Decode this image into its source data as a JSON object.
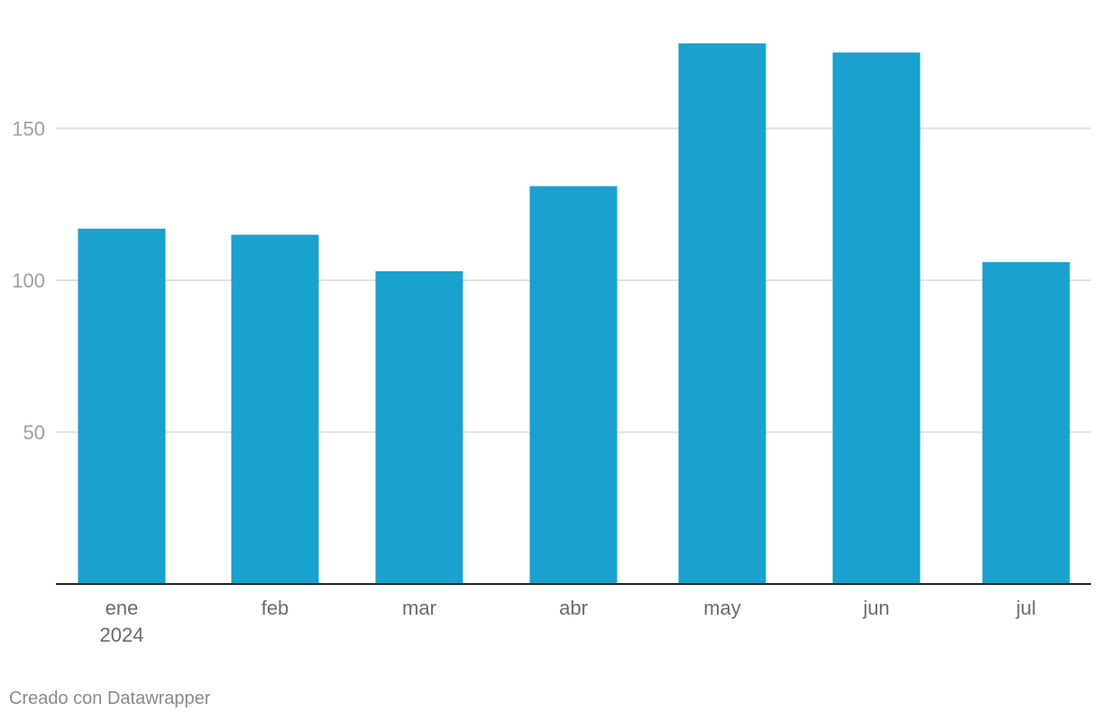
{
  "chart_data": {
    "type": "bar",
    "title": "",
    "xlabel": "",
    "ylabel": "",
    "categories": [
      "ene",
      "feb",
      "mar",
      "abr",
      "may",
      "jun",
      "jul"
    ],
    "category_sublabels": [
      "2024",
      "",
      "",
      "",
      "",
      "",
      ""
    ],
    "values": [
      117,
      115,
      103,
      131,
      178,
      175,
      106
    ],
    "ylim": [
      0,
      190
    ],
    "yticks": [
      50,
      100,
      150
    ],
    "grid": true,
    "colors": {
      "bar": "#1aa1cd",
      "grid": "#e2e2e2",
      "axis": "#222222"
    }
  },
  "footer": {
    "credit": "Creado con Datawrapper"
  }
}
